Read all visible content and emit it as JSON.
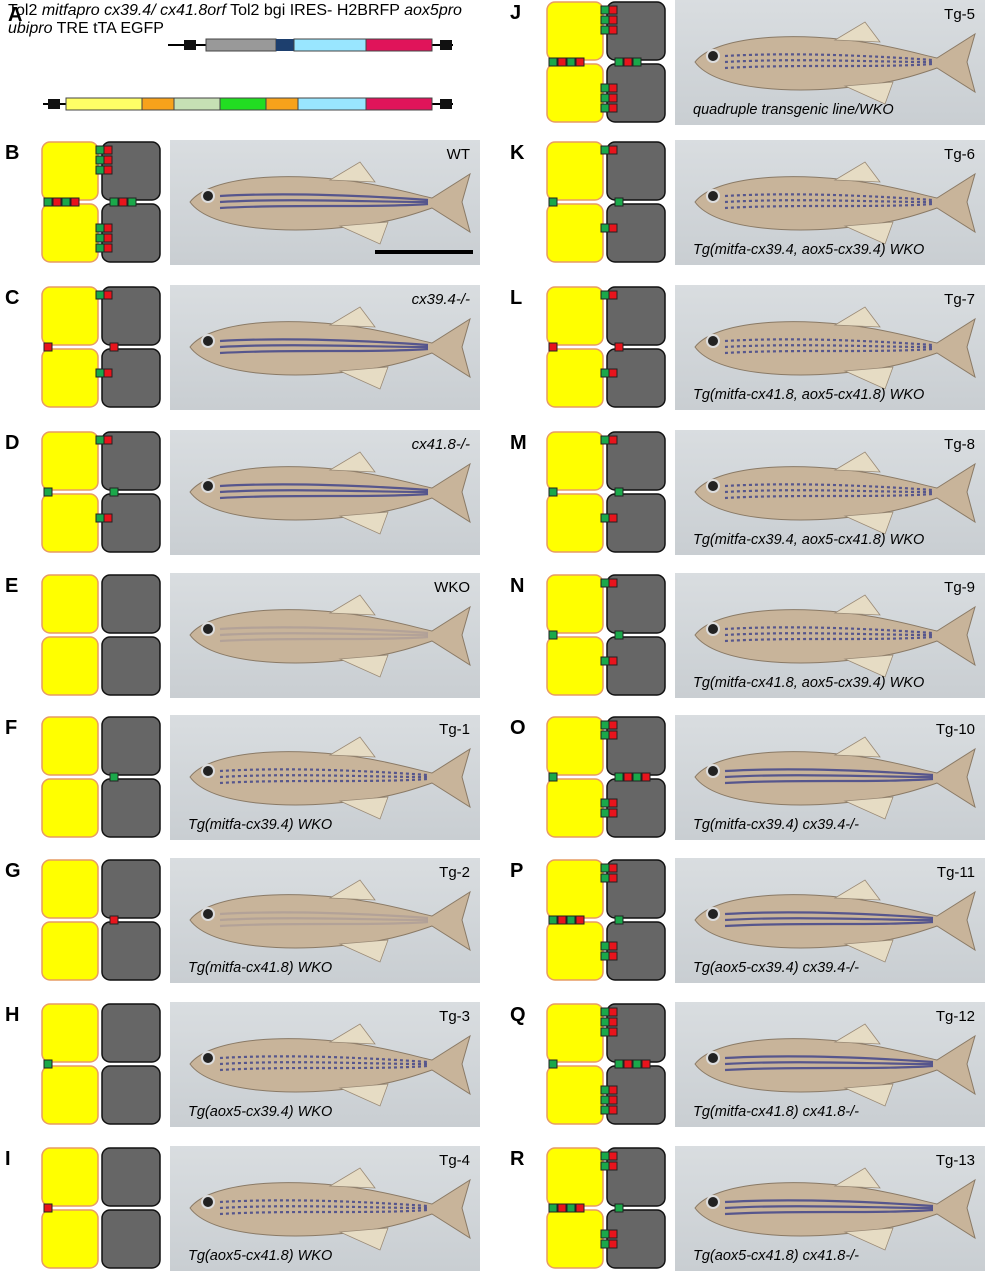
{
  "construct": {
    "panel_letter": "A",
    "row1_labels": [
      "Tol2",
      "mitfapro",
      "cx39.4/",
      "cx41.8orf",
      "Tol2",
      "bgi",
      "IRES-",
      "H2BRFP"
    ],
    "row2_labels": [
      "aox5pro",
      "ubipro",
      "TRE",
      "tTA",
      "EGFP"
    ]
  },
  "panels": [
    {
      "letter": "B",
      "tag": "WT",
      "caption": ""
    },
    {
      "letter": "C",
      "tag": "cx39.4-/-",
      "caption": ""
    },
    {
      "letter": "D",
      "tag": "cx41.8-/-",
      "caption": ""
    },
    {
      "letter": "E",
      "tag": "WKO",
      "caption": ""
    },
    {
      "letter": "F",
      "tag": "Tg-1",
      "caption": "Tg(mitfa-cx39.4) WKO"
    },
    {
      "letter": "G",
      "tag": "Tg-2",
      "caption": "Tg(mitfa-cx41.8) WKO"
    },
    {
      "letter": "H",
      "tag": "Tg-3",
      "caption": "Tg(aox5-cx39.4) WKO"
    },
    {
      "letter": "I",
      "tag": "Tg-4",
      "caption": "Tg(aox5-cx41.8) WKO"
    },
    {
      "letter": "J",
      "tag": "Tg-5",
      "caption": "quadruple transgenic line/WKO"
    },
    {
      "letter": "K",
      "tag": "Tg-6",
      "caption": "Tg(mitfa-cx39.4, aox5-cx39.4) WKO"
    },
    {
      "letter": "L",
      "tag": "Tg-7",
      "caption": "Tg(mitfa-cx41.8, aox5-cx41.8) WKO"
    },
    {
      "letter": "M",
      "tag": "Tg-8",
      "caption": "Tg(mitfa-cx39.4, aox5-cx41.8) WKO"
    },
    {
      "letter": "N",
      "tag": "Tg-9",
      "caption": "Tg(mitfa-cx41.8, aox5-cx39.4) WKO"
    },
    {
      "letter": "O",
      "tag": "Tg-10",
      "caption": "Tg(mitfa-cx39.4) cx39.4-/-"
    },
    {
      "letter": "P",
      "tag": "Tg-11",
      "caption": "Tg(aox5-cx39.4) cx39.4-/-"
    },
    {
      "letter": "Q",
      "tag": "Tg-12",
      "caption": "Tg(mitfa-cx41.8) cx41.8-/-"
    },
    {
      "letter": "R",
      "tag": "Tg-13",
      "caption": "Tg(aox5-cx41.8) cx41.8-/-"
    }
  ],
  "colors": {
    "xanthophore": "#ffff00",
    "melanophore": "#666666",
    "cx39_4": "#1aa84a",
    "cx41_8": "#e8141c",
    "photo_bg": "#d0d4d7"
  }
}
